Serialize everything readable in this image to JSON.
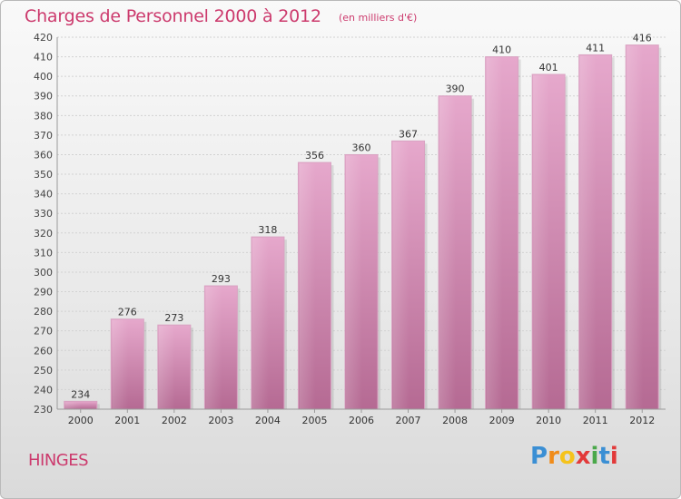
{
  "header": {
    "title": "Charges de Personnel 2000 à 2012",
    "subtitle": "(en milliers d'€)"
  },
  "location": "HINGES",
  "logo": {
    "letters": [
      "P",
      "r",
      "o",
      "x",
      "i",
      "t",
      "i"
    ],
    "colors": [
      "#3b8fd4",
      "#f08c1a",
      "#f5c31c",
      "#e23a3a",
      "#4aa84a",
      "#3b8fd4",
      "#e23a3a"
    ]
  },
  "colors": {
    "bar": "#c9699d",
    "text": "#cc3a6d"
  },
  "chart_data": {
    "type": "bar",
    "title": "Charges de Personnel 2000 à 2012",
    "subtitle": "(en milliers d'€)",
    "categories": [
      "2000",
      "2001",
      "2002",
      "2003",
      "2004",
      "2005",
      "2006",
      "2007",
      "2008",
      "2009",
      "2010",
      "2011",
      "2012"
    ],
    "values": [
      234,
      276,
      273,
      293,
      318,
      356,
      360,
      367,
      390,
      410,
      401,
      411,
      416
    ],
    "ylim": [
      230,
      420
    ],
    "yticks": [
      230,
      240,
      250,
      260,
      270,
      280,
      290,
      300,
      310,
      320,
      330,
      340,
      350,
      360,
      370,
      380,
      390,
      400,
      410,
      420
    ],
    "grid": true,
    "data_labels": true
  }
}
